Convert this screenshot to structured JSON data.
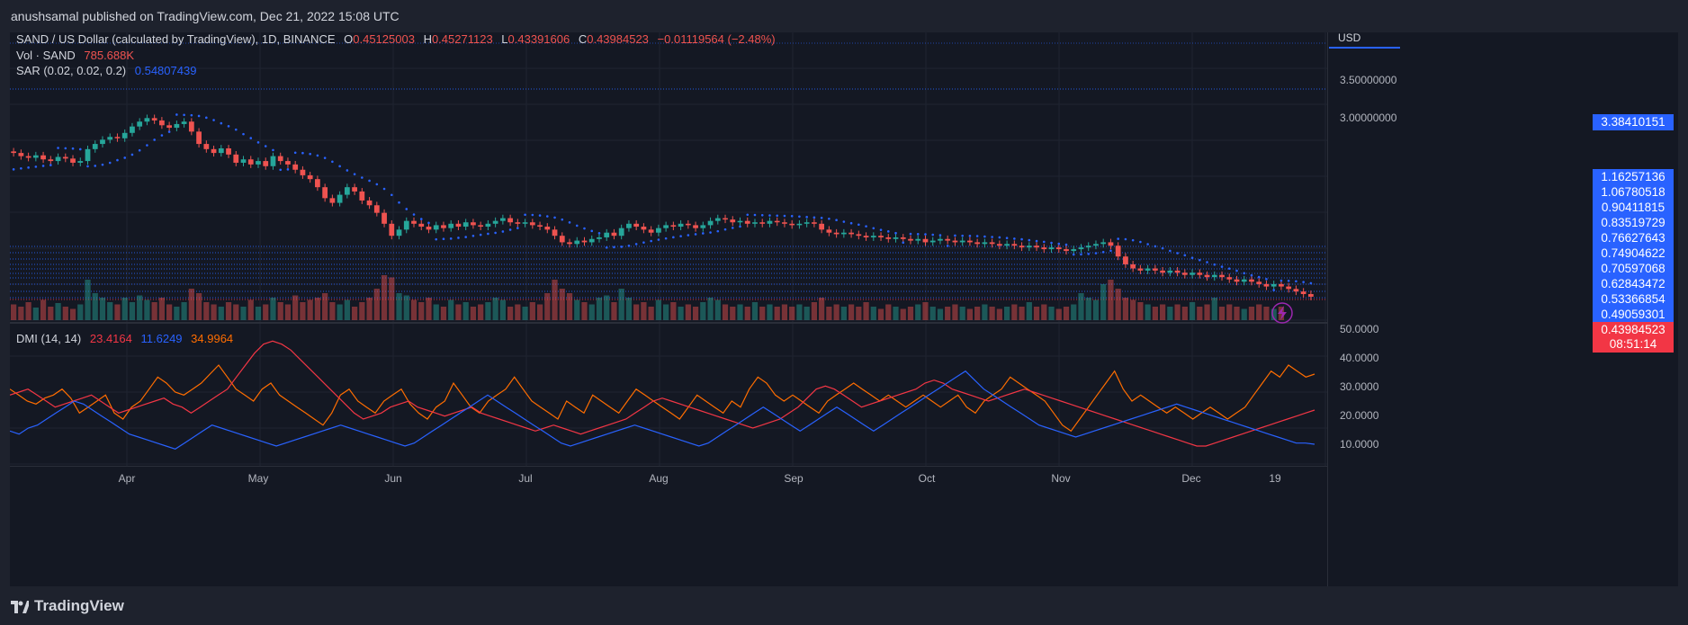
{
  "header": {
    "published": "anushsamal published on TradingView.com, Dec 21, 2022 15:08 UTC"
  },
  "legend": {
    "symbol": "SAND / US Dollar (calculated by TradingView), 1D, BINANCE",
    "o_label": "O",
    "o": "0.45125003",
    "h_label": "H",
    "h": "0.45271123",
    "l_label": "L",
    "l": "0.43391606",
    "c_label": "C",
    "c": "0.43984523",
    "change": "−0.01119564 (−2.48%)",
    "vol_label": "Vol · SAND",
    "vol": "785.688K",
    "sar_label": "SAR (0.02, 0.02, 0.2)",
    "sar": "0.54807439",
    "dmi_label": "DMI (14, 14)",
    "dmi_plus": "23.4164",
    "dmi_minus": "11.6249",
    "adx": "34.9964"
  },
  "price_axis": {
    "currency": "USD",
    "ticks": [
      "3.50000000",
      "3.00000000",
      "50.0000",
      "40.0000",
      "30.0000",
      "20.0000",
      "10.0000"
    ]
  },
  "price_boxes": [
    {
      "label": "3.38410151",
      "color": "#2962ff"
    },
    {
      "label": "1.16257136",
      "color": "#2962ff"
    },
    {
      "label": "1.06780518",
      "color": "#2962ff"
    },
    {
      "label": "0.90411815",
      "color": "#2962ff"
    },
    {
      "label": "0.83519729",
      "color": "#2962ff"
    },
    {
      "label": "0.76627643",
      "color": "#2962ff"
    },
    {
      "label": "0.74904622",
      "color": "#2962ff"
    },
    {
      "label": "0.70597068",
      "color": "#2962ff"
    },
    {
      "label": "0.62843472",
      "color": "#2962ff"
    },
    {
      "label": "0.53366854",
      "color": "#2962ff"
    },
    {
      "label": "0.49059301",
      "color": "#2962ff"
    },
    {
      "label": "0.43984523",
      "color": "#f23645"
    },
    {
      "label": "08:51:14",
      "color": "#f23645"
    }
  ],
  "time_axis": {
    "labels": [
      "Apr",
      "May",
      "Jun",
      "Jul",
      "Aug",
      "Sep",
      "Oct",
      "Nov",
      "Dec",
      "19"
    ]
  },
  "footer": {
    "brand": "TradingView"
  },
  "colors": {
    "up": "#26a69a",
    "down": "#ef5350",
    "sar": "#2962ff",
    "dmi_plus": "#f23645",
    "dmi_minus": "#2962ff",
    "adx": "#ff6d00"
  },
  "chart_data": {
    "type": "candlestick",
    "x_range": [
      "2022-03-08",
      "2022-12-21"
    ],
    "candles": [
      [
        1.52,
        1.5
      ],
      [
        1.5,
        1.46
      ],
      [
        1.46,
        1.44
      ],
      [
        1.44,
        1.47
      ],
      [
        1.47,
        1.42
      ],
      [
        1.42,
        1.4
      ],
      [
        1.4,
        1.45
      ],
      [
        1.45,
        1.43
      ],
      [
        1.43,
        1.38
      ],
      [
        1.38,
        1.4
      ],
      [
        1.4,
        1.55
      ],
      [
        1.55,
        1.62
      ],
      [
        1.62,
        1.68
      ],
      [
        1.68,
        1.72
      ],
      [
        1.72,
        1.7
      ],
      [
        1.7,
        1.78
      ],
      [
        1.78,
        1.88
      ],
      [
        1.88,
        1.96
      ],
      [
        1.96,
        2.02
      ],
      [
        2.02,
        1.98
      ],
      [
        1.98,
        1.9
      ],
      [
        1.9,
        1.86
      ],
      [
        1.86,
        1.92
      ],
      [
        1.92,
        1.96
      ],
      [
        1.96,
        1.8
      ],
      [
        1.8,
        1.62
      ],
      [
        1.62,
        1.55
      ],
      [
        1.55,
        1.5
      ],
      [
        1.5,
        1.56
      ],
      [
        1.56,
        1.48
      ],
      [
        1.48,
        1.38
      ],
      [
        1.38,
        1.42
      ],
      [
        1.42,
        1.36
      ],
      [
        1.36,
        1.4
      ],
      [
        1.4,
        1.34
      ],
      [
        1.34,
        1.46
      ],
      [
        1.46,
        1.4
      ],
      [
        1.4,
        1.36
      ],
      [
        1.36,
        1.3
      ],
      [
        1.3,
        1.24
      ],
      [
        1.24,
        1.2
      ],
      [
        1.2,
        1.12
      ],
      [
        1.12,
        1.02
      ],
      [
        1.02,
        0.98
      ],
      [
        0.98,
        1.05
      ],
      [
        1.05,
        1.12
      ],
      [
        1.12,
        1.08
      ],
      [
        1.08,
        1.0
      ],
      [
        1.0,
        0.96
      ],
      [
        0.96,
        0.9
      ],
      [
        0.9,
        0.82
      ],
      [
        0.82,
        0.74
      ],
      [
        0.74,
        0.78
      ],
      [
        0.78,
        0.84
      ],
      [
        0.84,
        0.82
      ],
      [
        0.82,
        0.8
      ],
      [
        0.8,
        0.78
      ],
      [
        0.78,
        0.81
      ],
      [
        0.81,
        0.79
      ],
      [
        0.79,
        0.82
      ],
      [
        0.82,
        0.8
      ],
      [
        0.8,
        0.83
      ],
      [
        0.83,
        0.81
      ],
      [
        0.81,
        0.8
      ],
      [
        0.8,
        0.82
      ],
      [
        0.82,
        0.84
      ],
      [
        0.84,
        0.86
      ],
      [
        0.86,
        0.83
      ],
      [
        0.83,
        0.82
      ],
      [
        0.82,
        0.83
      ],
      [
        0.83,
        0.81
      ],
      [
        0.81,
        0.8
      ],
      [
        0.8,
        0.78
      ],
      [
        0.78,
        0.74
      ],
      [
        0.74,
        0.7
      ],
      [
        0.7,
        0.69
      ],
      [
        0.69,
        0.71
      ],
      [
        0.71,
        0.7
      ],
      [
        0.7,
        0.72
      ],
      [
        0.72,
        0.73
      ],
      [
        0.73,
        0.76
      ],
      [
        0.76,
        0.74
      ],
      [
        0.74,
        0.79
      ],
      [
        0.79,
        0.82
      ],
      [
        0.82,
        0.8
      ],
      [
        0.8,
        0.78
      ],
      [
        0.78,
        0.76
      ],
      [
        0.76,
        0.79
      ],
      [
        0.79,
        0.81
      ],
      [
        0.81,
        0.8
      ],
      [
        0.8,
        0.82
      ],
      [
        0.82,
        0.81
      ],
      [
        0.81,
        0.79
      ],
      [
        0.79,
        0.81
      ],
      [
        0.81,
        0.84
      ],
      [
        0.84,
        0.86
      ],
      [
        0.86,
        0.85
      ],
      [
        0.85,
        0.83
      ],
      [
        0.83,
        0.84
      ],
      [
        0.84,
        0.82
      ],
      [
        0.82,
        0.83
      ],
      [
        0.83,
        0.82
      ],
      [
        0.82,
        0.84
      ],
      [
        0.84,
        0.83
      ],
      [
        0.83,
        0.82
      ],
      [
        0.82,
        0.81
      ],
      [
        0.81,
        0.82
      ],
      [
        0.82,
        0.83
      ],
      [
        0.83,
        0.82
      ],
      [
        0.82,
        0.78
      ],
      [
        0.78,
        0.76
      ],
      [
        0.76,
        0.75
      ],
      [
        0.75,
        0.76
      ],
      [
        0.76,
        0.75
      ],
      [
        0.75,
        0.74
      ],
      [
        0.74,
        0.73
      ],
      [
        0.73,
        0.74
      ],
      [
        0.74,
        0.73
      ],
      [
        0.73,
        0.72
      ],
      [
        0.72,
        0.73
      ],
      [
        0.73,
        0.72
      ],
      [
        0.72,
        0.71
      ],
      [
        0.71,
        0.72
      ],
      [
        0.72,
        0.7
      ],
      [
        0.7,
        0.71
      ],
      [
        0.71,
        0.72
      ],
      [
        0.72,
        0.71
      ],
      [
        0.71,
        0.7
      ],
      [
        0.7,
        0.71
      ],
      [
        0.71,
        0.7
      ],
      [
        0.7,
        0.69
      ],
      [
        0.69,
        0.7
      ],
      [
        0.7,
        0.69
      ],
      [
        0.69,
        0.68
      ],
      [
        0.68,
        0.69
      ],
      [
        0.69,
        0.68
      ],
      [
        0.68,
        0.67
      ],
      [
        0.67,
        0.68
      ],
      [
        0.68,
        0.67
      ],
      [
        0.67,
        0.66
      ],
      [
        0.66,
        0.67
      ],
      [
        0.67,
        0.66
      ],
      [
        0.66,
        0.65
      ],
      [
        0.65,
        0.66
      ],
      [
        0.66,
        0.67
      ],
      [
        0.67,
        0.68
      ],
      [
        0.68,
        0.69
      ],
      [
        0.69,
        0.7
      ],
      [
        0.7,
        0.68
      ],
      [
        0.68,
        0.62
      ],
      [
        0.62,
        0.58
      ],
      [
        0.58,
        0.56
      ],
      [
        0.56,
        0.55
      ],
      [
        0.55,
        0.56
      ],
      [
        0.56,
        0.55
      ],
      [
        0.55,
        0.54
      ],
      [
        0.54,
        0.55
      ],
      [
        0.55,
        0.54
      ],
      [
        0.54,
        0.53
      ],
      [
        0.53,
        0.54
      ],
      [
        0.54,
        0.53
      ],
      [
        0.53,
        0.52
      ],
      [
        0.52,
        0.53
      ],
      [
        0.53,
        0.52
      ],
      [
        0.52,
        0.51
      ],
      [
        0.51,
        0.5
      ],
      [
        0.5,
        0.51
      ],
      [
        0.51,
        0.5
      ],
      [
        0.5,
        0.49
      ],
      [
        0.49,
        0.48
      ],
      [
        0.48,
        0.49
      ],
      [
        0.49,
        0.48
      ],
      [
        0.48,
        0.47
      ],
      [
        0.47,
        0.46
      ],
      [
        0.46,
        0.45
      ],
      [
        0.45,
        0.44
      ]
    ],
    "volume": [
      0.35,
      0.3,
      0.4,
      0.28,
      0.45,
      0.3,
      0.38,
      0.3,
      0.25,
      0.35,
      0.9,
      0.6,
      0.5,
      0.4,
      0.35,
      0.5,
      0.4,
      0.55,
      0.45,
      0.4,
      0.5,
      0.35,
      0.3,
      0.4,
      0.7,
      0.6,
      0.4,
      0.35,
      0.3,
      0.4,
      0.35,
      0.3,
      0.45,
      0.3,
      0.35,
      0.5,
      0.4,
      0.35,
      0.55,
      0.4,
      0.45,
      0.5,
      0.6,
      0.4,
      0.35,
      0.45,
      0.3,
      0.4,
      0.5,
      0.7,
      1.0,
      0.95,
      0.6,
      0.55,
      0.45,
      0.4,
      0.5,
      0.35,
      0.3,
      0.45,
      0.35,
      0.4,
      0.3,
      0.35,
      0.4,
      0.5,
      0.45,
      0.3,
      0.35,
      0.3,
      0.4,
      0.35,
      0.6,
      0.9,
      0.7,
      0.6,
      0.45,
      0.4,
      0.35,
      0.5,
      0.55,
      0.4,
      0.7,
      0.5,
      0.35,
      0.4,
      0.3,
      0.45,
      0.35,
      0.4,
      0.3,
      0.35,
      0.3,
      0.4,
      0.5,
      0.45,
      0.35,
      0.3,
      0.35,
      0.3,
      0.4,
      0.3,
      0.35,
      0.3,
      0.35,
      0.3,
      0.35,
      0.3,
      0.4,
      0.5,
      0.3,
      0.35,
      0.3,
      0.35,
      0.3,
      0.4,
      0.3,
      0.25,
      0.35,
      0.3,
      0.25,
      0.3,
      0.35,
      0.4,
      0.3,
      0.25,
      0.3,
      0.35,
      0.3,
      0.25,
      0.3,
      0.35,
      0.3,
      0.25,
      0.3,
      0.35,
      0.3,
      0.4,
      0.3,
      0.35,
      0.3,
      0.25,
      0.3,
      0.35,
      0.6,
      0.5,
      0.45,
      0.8,
      0.9,
      0.7,
      0.5,
      0.45,
      0.4,
      0.35,
      0.3,
      0.35,
      0.3,
      0.35,
      0.3,
      0.4,
      0.3,
      0.35,
      0.5,
      0.3,
      0.35,
      0.3,
      0.25,
      0.3,
      0.35,
      0.3,
      0.25,
      0.3
    ],
    "dmi": {
      "adx": [
        30,
        28,
        26,
        25,
        27,
        28,
        30,
        27,
        22,
        24,
        26,
        28,
        22,
        20,
        24,
        26,
        30,
        34,
        32,
        29,
        28,
        30,
        32,
        35,
        38,
        34,
        30,
        28,
        26,
        30,
        32,
        28,
        26,
        24,
        22,
        20,
        18,
        22,
        28,
        30,
        26,
        24,
        22,
        26,
        28,
        30,
        25,
        22,
        20,
        24,
        26,
        32,
        28,
        24,
        22,
        26,
        28,
        30,
        34,
        30,
        26,
        24,
        22,
        20,
        26,
        24,
        22,
        28,
        26,
        24,
        22,
        26,
        30,
        28,
        26,
        24,
        22,
        20,
        24,
        28,
        26,
        24,
        22,
        26,
        24,
        30,
        34,
        32,
        28,
        26,
        28,
        26,
        24,
        22,
        26,
        28,
        30,
        32,
        30,
        28,
        26,
        28,
        26,
        24,
        26,
        28,
        26,
        24,
        26,
        28,
        24,
        22,
        26,
        28,
        30,
        34,
        32,
        30,
        28,
        26,
        22,
        18,
        16,
        20,
        24,
        28,
        32,
        36,
        30,
        26,
        28,
        26,
        24,
        22,
        24,
        22,
        20,
        22,
        24,
        22,
        20,
        22,
        24,
        28,
        32,
        36,
        34,
        38,
        36,
        34,
        35
      ],
      "dmi_plus": [
        28,
        29,
        30,
        28,
        26,
        24,
        25,
        26,
        27,
        28,
        26,
        24,
        22,
        23,
        24,
        25,
        26,
        27,
        25,
        24,
        22,
        24,
        26,
        28,
        30,
        34,
        38,
        42,
        45,
        46,
        45,
        43,
        40,
        37,
        34,
        31,
        28,
        25,
        22,
        20,
        21,
        22,
        24,
        25,
        26,
        24,
        23,
        22,
        21,
        22,
        23,
        24,
        22,
        21,
        20,
        19,
        18,
        17,
        16,
        17,
        18,
        17,
        16,
        15,
        16,
        17,
        18,
        19,
        20,
        22,
        24,
        26,
        27,
        26,
        25,
        24,
        23,
        22,
        21,
        20,
        19,
        18,
        17,
        18,
        19,
        20,
        22,
        24,
        27,
        30,
        31,
        30,
        28,
        26,
        24,
        25,
        26,
        27,
        28,
        29,
        30,
        32,
        33,
        32,
        30,
        29,
        28,
        27,
        26,
        27,
        28,
        29,
        30,
        29,
        28,
        27,
        26,
        25,
        24,
        23,
        22,
        21,
        20,
        19,
        18,
        17,
        16,
        15,
        14,
        13,
        12,
        11,
        11,
        12,
        13,
        14,
        15,
        16,
        17,
        18,
        19,
        20,
        21,
        22,
        23
      ],
      "dmi_minus": [
        16,
        15,
        17,
        18,
        20,
        22,
        24,
        26,
        25,
        23,
        21,
        19,
        17,
        15,
        14,
        13,
        12,
        11,
        10,
        12,
        14,
        16,
        18,
        17,
        16,
        15,
        14,
        13,
        12,
        11,
        12,
        13,
        14,
        15,
        16,
        17,
        18,
        17,
        16,
        15,
        14,
        13,
        12,
        11,
        12,
        14,
        16,
        18,
        20,
        22,
        24,
        26,
        28,
        26,
        24,
        22,
        20,
        18,
        16,
        14,
        12,
        11,
        12,
        13,
        14,
        15,
        16,
        17,
        18,
        17,
        16,
        15,
        14,
        13,
        12,
        11,
        12,
        14,
        16,
        18,
        20,
        22,
        24,
        22,
        20,
        18,
        16,
        18,
        20,
        22,
        24,
        22,
        20,
        18,
        16,
        18,
        20,
        22,
        24,
        26,
        28,
        30,
        32,
        34,
        36,
        33,
        30,
        28,
        26,
        24,
        22,
        20,
        18,
        17,
        16,
        15,
        14,
        15,
        16,
        17,
        18,
        19,
        20,
        21,
        22,
        23,
        24,
        25,
        24,
        23,
        22,
        21,
        20,
        19,
        18,
        17,
        16,
        15,
        14,
        13,
        12,
        12,
        11.6
      ]
    }
  }
}
